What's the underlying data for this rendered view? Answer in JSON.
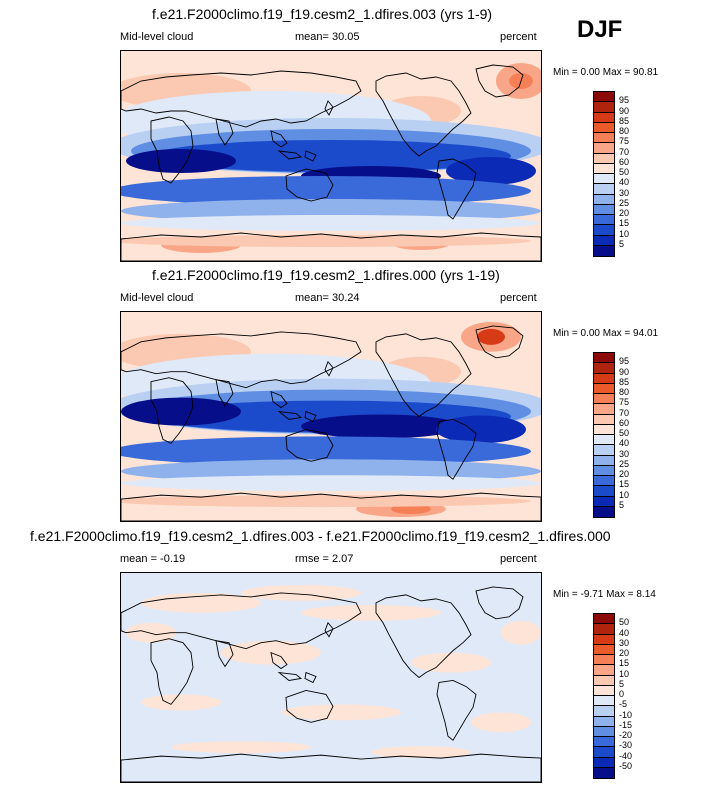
{
  "season": "DJF",
  "panels": [
    {
      "title": "f.e21.F2000climo.f19_f19.cesm2_1.dfires.003 (yrs 1-9)",
      "left_label": "Mid-level cloud",
      "stat_label": "mean=  30.05",
      "units": "percent",
      "minmax": "Min =   0.00 Max =  90.81",
      "colorbar": {
        "labels": [
          "95",
          "90",
          "85",
          "80",
          "75",
          "70",
          "60",
          "50",
          "40",
          "30",
          "25",
          "20",
          "15",
          "10",
          "5"
        ],
        "colors": [
          "#8c0a0a",
          "#b0240f",
          "#d63a16",
          "#ea5a2b",
          "#f58058",
          "#f9a688",
          "#fbc9b1",
          "#fde4d6",
          "#dfe9f8",
          "#b9d0f3",
          "#8fb2ec",
          "#5f8ee3",
          "#3a6ad9",
          "#1b4acb",
          "#0b2ab5",
          "#060e8a"
        ]
      }
    },
    {
      "title": "f.e21.F2000climo.f19_f19.cesm2_1.dfires.000 (yrs 1-19)",
      "left_label": "Mid-level cloud",
      "stat_label": "mean=  30.24",
      "units": "percent",
      "minmax": "Min =   0.00 Max =  94.01",
      "colorbar": {
        "labels": [
          "95",
          "90",
          "85",
          "80",
          "75",
          "70",
          "60",
          "50",
          "40",
          "30",
          "25",
          "20",
          "15",
          "10",
          "5"
        ],
        "colors": [
          "#8c0a0a",
          "#b0240f",
          "#d63a16",
          "#ea5a2b",
          "#f58058",
          "#f9a688",
          "#fbc9b1",
          "#fde4d6",
          "#dfe9f8",
          "#b9d0f3",
          "#8fb2ec",
          "#5f8ee3",
          "#3a6ad9",
          "#1b4acb",
          "#0b2ab5",
          "#060e8a"
        ]
      }
    },
    {
      "title": "f.e21.F2000climo.f19_f19.cesm2_1.dfires.003 - f.e21.F2000climo.f19_f19.cesm2_1.dfires.000",
      "left_label": "mean = -0.19",
      "stat_label": "rmse =  2.07",
      "units": "percent",
      "minmax": "Min =  -9.71 Max =   8.14",
      "colorbar": {
        "labels": [
          "50",
          "40",
          "30",
          "20",
          "15",
          "10",
          "5",
          "0",
          "-5",
          "-10",
          "-15",
          "-20",
          "-30",
          "-40",
          "-50"
        ],
        "colors": [
          "#8c0a0a",
          "#b0240f",
          "#d63a16",
          "#ea5a2b",
          "#f58058",
          "#f9a688",
          "#fbc9b1",
          "#fde4d6",
          "#dfe9f8",
          "#b9d0f3",
          "#8fb2ec",
          "#5f8ee3",
          "#3a6ad9",
          "#1b4acb",
          "#0b2ab5",
          "#060e8a"
        ]
      }
    }
  ]
}
